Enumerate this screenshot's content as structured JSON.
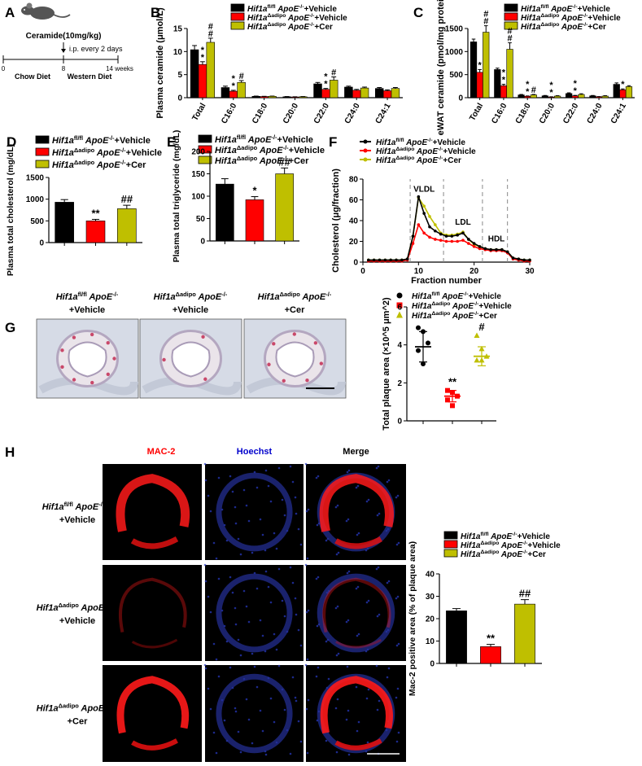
{
  "panels": {
    "A": {
      "letter": "A",
      "dose": "Ceramide(10mg/kg)",
      "schedule": "i.p. every 2 days",
      "ticks": [
        "0",
        "8",
        "14 weeks"
      ],
      "phases": [
        "Chow Diet",
        "Western Diet"
      ]
    },
    "B": {
      "letter": "B",
      "legend": [
        "Hif1a fl/fl ApoE-/-+Vehicle",
        "Hif1aΔadipo ApoE-/-+Vehicle",
        "Hif1aΔadipo ApoE-/-+Cer"
      ]
    },
    "C": {
      "letter": "C"
    },
    "D": {
      "letter": "D"
    },
    "E": {
      "letter": "E"
    },
    "F": {
      "letter": "F",
      "peaks": [
        "VLDL",
        "LDL",
        "HDL"
      ]
    },
    "G": {
      "letter": "G",
      "groups": [
        [
          "Hif1a",
          "fl/fl",
          "ApoE",
          "-/-",
          "+Vehicle"
        ],
        [
          "Hif1a",
          "Δadipo",
          "ApoE",
          "-/-",
          "+Vehicle"
        ],
        [
          "Hif1a",
          "Δadipo",
          "ApoE",
          "-/-",
          "+Cer"
        ]
      ]
    },
    "H": {
      "letter": "H",
      "channels": [
        "MAC-2",
        "Hoechst",
        "Merge"
      ],
      "rows": [
        [
          "Hif1a",
          "fl/fl",
          "ApoE",
          "-/-",
          "+Vehicle"
        ],
        [
          "Hif1a",
          "Δadipo",
          "ApoE",
          "-/-",
          "+Vehicle"
        ],
        [
          "Hif1a",
          "Δadipo",
          "ApoE",
          "-/-",
          "+Cer"
        ]
      ]
    }
  },
  "legend_groups": [
    {
      "gene": "Hif1a",
      "sup": "fl/fl",
      "apo": "ApoE",
      "apo_sup": "-/-",
      "treat": "+Vehicle",
      "color": "#000000"
    },
    {
      "gene": "Hif1a",
      "sup": "Δadipo",
      "apo": "ApoE",
      "apo_sup": "-/-",
      "treat": "+Vehicle",
      "color": "#ff0000"
    },
    {
      "gene": "Hif1a",
      "sup": "Δadipo",
      "apo": "ApoE",
      "apo_sup": "-/-",
      "treat": "+Cer",
      "color": "#bfbf00"
    }
  ],
  "chart_data": [
    {
      "id": "B",
      "type": "bar",
      "ylabel": "Plasma ceramide (μmol/L)",
      "categories": [
        "Total",
        "C16:0",
        "C18:0",
        "C20:0",
        "C22:0",
        "C24:0",
        "C24:1"
      ],
      "ylim": [
        0,
        15
      ],
      "yticks": [
        0,
        5,
        10,
        15
      ],
      "series": [
        {
          "values": [
            10.4,
            2.2,
            0.3,
            0.2,
            3.0,
            2.3,
            2.0
          ],
          "errors": [
            0.9,
            0.3,
            0.05,
            0.05,
            0.3,
            0.2,
            0.2
          ]
        },
        {
          "values": [
            7.2,
            1.4,
            0.25,
            0.15,
            1.8,
            1.6,
            1.5
          ],
          "errors": [
            0.6,
            0.2,
            0.05,
            0.05,
            0.2,
            0.2,
            0.2
          ]
        },
        {
          "values": [
            12.0,
            3.3,
            0.3,
            0.2,
            3.8,
            2.1,
            2.0
          ],
          "errors": [
            0.9,
            0.4,
            0.05,
            0.05,
            0.7,
            0.2,
            0.2
          ]
        }
      ],
      "annotations": [
        {
          "cat": 0,
          "series": 1,
          "text": "*"
        },
        {
          "cat": 0,
          "series": 1,
          "text": "*",
          "level": 1
        },
        {
          "cat": 0,
          "series": 2,
          "text": "#"
        },
        {
          "cat": 0,
          "series": 2,
          "text": "#",
          "level": 1
        },
        {
          "cat": 1,
          "series": 1,
          "text": "*"
        },
        {
          "cat": 1,
          "series": 1,
          "text": "*",
          "level": 1
        },
        {
          "cat": 1,
          "series": 2,
          "text": "#"
        },
        {
          "cat": 4,
          "series": 1,
          "text": "*"
        },
        {
          "cat": 4,
          "series": 1,
          "text": "*",
          "level": 1
        },
        {
          "cat": 4,
          "series": 2,
          "text": "#"
        }
      ]
    },
    {
      "id": "C",
      "type": "bar",
      "ylabel": "eWAT ceramide (pmol/mg protein)",
      "categories": [
        "Total",
        "C16:0",
        "C18:0",
        "C20:0",
        "C22:0",
        "C24:0",
        "C24:1"
      ],
      "ylim": [
        0,
        1500
      ],
      "yticks": [
        0,
        500,
        1000,
        1500
      ],
      "series": [
        {
          "values": [
            1210,
            610,
            60,
            40,
            90,
            40,
            290
          ],
          "errors": [
            60,
            30,
            10,
            8,
            15,
            8,
            30
          ]
        },
        {
          "values": [
            550,
            260,
            30,
            15,
            40,
            20,
            170
          ],
          "errors": [
            60,
            30,
            8,
            5,
            10,
            5,
            20
          ]
        },
        {
          "values": [
            1420,
            1050,
            60,
            35,
            70,
            35,
            240
          ],
          "errors": [
            140,
            140,
            10,
            8,
            15,
            8,
            20
          ]
        }
      ],
      "annotations": [
        {
          "cat": 0,
          "series": 1,
          "text": "*"
        },
        {
          "cat": 0,
          "series": 2,
          "text": "#"
        },
        {
          "cat": 0,
          "series": 2,
          "text": "#",
          "level": 1
        },
        {
          "cat": 1,
          "series": 1,
          "text": "*"
        },
        {
          "cat": 1,
          "series": 1,
          "text": "*",
          "level": 1
        },
        {
          "cat": 1,
          "series": 2,
          "text": "#"
        },
        {
          "cat": 1,
          "series": 2,
          "text": "#",
          "level": 1
        },
        {
          "cat": 2,
          "series": 1,
          "text": "*"
        },
        {
          "cat": 2,
          "series": 1,
          "text": "*",
          "level": 1
        },
        {
          "cat": 2,
          "series": 2,
          "text": "#"
        },
        {
          "cat": 3,
          "series": 1,
          "text": "*"
        },
        {
          "cat": 3,
          "series": 1,
          "text": "*",
          "level": 1
        },
        {
          "cat": 4,
          "series": 1,
          "text": "*"
        },
        {
          "cat": 4,
          "series": 1,
          "text": "*",
          "level": 1
        },
        {
          "cat": 6,
          "series": 1,
          "text": "*"
        }
      ]
    },
    {
      "id": "D",
      "type": "bar",
      "ylabel": "Plasma total cholesterol (mg/dL)",
      "ylim": [
        0,
        1500
      ],
      "yticks": [
        0,
        500,
        1000,
        1500
      ],
      "values": [
        930,
        500,
        780
      ],
      "errors": [
        60,
        35,
        80
      ],
      "labels": [
        "",
        "**",
        "##"
      ]
    },
    {
      "id": "E",
      "type": "bar",
      "ylabel": "Plasma total triglyceride (mg/dL)",
      "ylim": [
        0,
        200
      ],
      "yticks": [
        0,
        50,
        100,
        150,
        200
      ],
      "values": [
        127,
        92,
        150
      ],
      "errors": [
        12,
        7,
        13
      ],
      "labels": [
        "",
        "*",
        "##"
      ]
    },
    {
      "id": "F",
      "type": "line",
      "xlabel": "Fraction number",
      "ylabel": "Cholesterol (μg/fraction)",
      "xlim": [
        0,
        30
      ],
      "ylim": [
        0,
        80
      ],
      "xticks": [
        0,
        10,
        20,
        30
      ],
      "yticks": [
        0,
        20,
        40,
        60,
        80
      ],
      "dashed_x": [
        8.5,
        14.5,
        21.5,
        26
      ],
      "x": [
        1,
        2,
        3,
        4,
        5,
        6,
        7,
        8,
        9,
        10,
        11,
        12,
        13,
        14,
        15,
        16,
        17,
        18,
        19,
        20,
        21,
        22,
        23,
        24,
        25,
        26,
        27,
        28,
        29,
        30
      ],
      "series": [
        {
          "values": [
            2,
            2,
            2,
            2,
            2,
            2,
            2,
            3,
            25,
            63,
            47,
            34,
            30,
            27,
            25,
            25,
            26,
            28,
            22,
            18,
            15,
            13,
            12,
            12,
            12,
            10,
            4,
            3,
            2,
            2
          ]
        },
        {
          "values": [
            1,
            1,
            1,
            1,
            1,
            1,
            1,
            2,
            18,
            36,
            28,
            24,
            22,
            21,
            20,
            20,
            20,
            21,
            18,
            15,
            13,
            12,
            11,
            11,
            11,
            9,
            3,
            2,
            1,
            1
          ]
        },
        {
          "values": [
            2,
            2,
            2,
            2,
            2,
            2,
            2,
            3,
            25,
            62,
            54,
            44,
            36,
            28,
            26,
            26,
            27,
            29,
            22,
            17,
            15,
            13,
            12,
            12,
            12,
            10,
            4,
            3,
            2,
            2
          ]
        }
      ]
    },
    {
      "id": "G",
      "type": "scatter",
      "ylabel": "Total plaque area (×10^5 μm^2)",
      "ylim": [
        0,
        6
      ],
      "yticks": [
        0,
        2,
        4,
        6
      ],
      "points": [
        [
          4.9,
          4.7,
          4.1,
          3.7,
          3.0
        ],
        [
          1.6,
          1.5,
          1.3,
          1.1,
          0.8
        ],
        [
          4.5,
          3.8,
          3.4,
          3.2,
          3.2
        ]
      ],
      "means": [
        3.9,
        1.3,
        3.4
      ],
      "sds": [
        0.8,
        0.3,
        0.5
      ],
      "labels": [
        "",
        "**",
        "#"
      ]
    },
    {
      "id": "H",
      "type": "bar",
      "ylabel": "Mac-2 positive area (% of plaque area)",
      "ylim": [
        0,
        40
      ],
      "yticks": [
        0,
        10,
        20,
        30,
        40
      ],
      "values": [
        23.5,
        7.5,
        26.5
      ],
      "errors": [
        1.0,
        1.0,
        2.0
      ],
      "labels": [
        "",
        "**",
        "##"
      ]
    }
  ]
}
